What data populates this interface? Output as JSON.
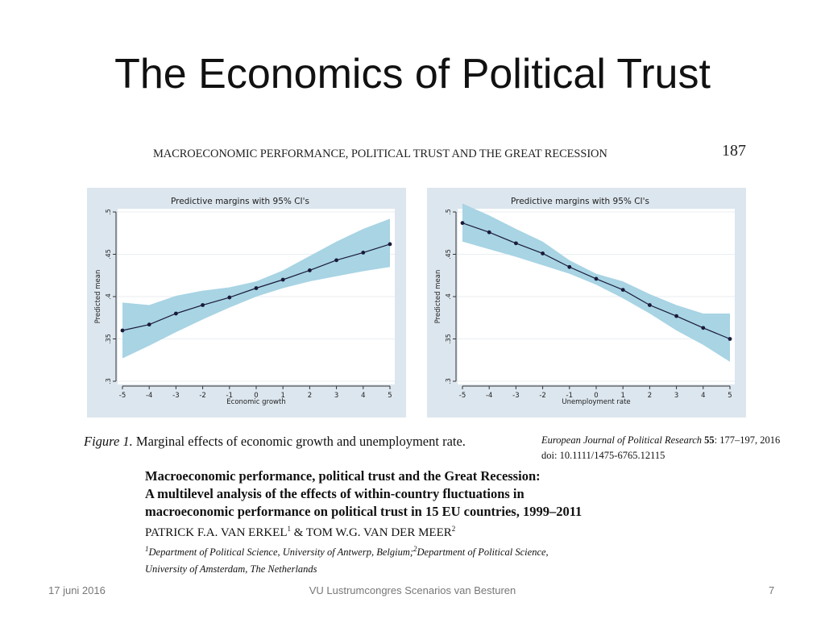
{
  "slide": {
    "title": "The Economics of Political Trust",
    "footer_date": "17 juni 2016",
    "footer_center": "VU Lustrumcongres Scenarios van Besturen",
    "footer_page": "7"
  },
  "paper": {
    "running_header": "MACROECONOMIC PERFORMANCE, POLITICAL TRUST AND THE GREAT RECESSION",
    "page_number": "187",
    "figure_label": "Figure 1.",
    "figure_caption": "Marginal effects of economic growth and unemployment rate.",
    "journal_name": "European Journal of Political Research",
    "journal_volume": "55",
    "journal_pages": ": 177–197, 2016",
    "doi": "doi: 10.1111/1475-6765.12115",
    "title_lines": [
      "Macroeconomic performance, political trust and the Great Recession:",
      "A multilevel analysis of the effects of within-country fluctuations in",
      "macroeconomic performance on political trust in 15 EU countries, 1999–2011"
    ],
    "author1": "PATRICK F.A. VAN ERKEL",
    "author1_sup": "1",
    "author_joiner": " & ",
    "author2": "TOM W.G. VAN DER MEER",
    "author2_sup": "2",
    "affil_sup1": "1",
    "affil_part1": "Department of Political Science, University of Antwerp, Belgium;",
    "affil_sup2": "2",
    "affil_part2": "Department of Political Science,",
    "affil_line2": "University of Amsterdam, The Netherlands"
  },
  "chart_data": [
    {
      "type": "line",
      "title": "Predictive margins with 95% CI's",
      "xlabel": "Economic growth",
      "ylabel": "Predicted mean",
      "x": [
        -5,
        -4,
        -3,
        -2,
        -1,
        0,
        1,
        2,
        3,
        4,
        5
      ],
      "y": [
        0.36,
        0.367,
        0.38,
        0.39,
        0.399,
        0.41,
        0.42,
        0.431,
        0.443,
        0.452,
        0.462
      ],
      "ci_lower": [
        0.327,
        0.342,
        0.358,
        0.373,
        0.387,
        0.4,
        0.41,
        0.418,
        0.424,
        0.43,
        0.435
      ],
      "ci_upper": [
        0.393,
        0.39,
        0.401,
        0.407,
        0.411,
        0.418,
        0.431,
        0.448,
        0.465,
        0.48,
        0.492
      ],
      "x_ticks": [
        "-5",
        "-4",
        "-3",
        "-2",
        "-1",
        "0",
        "1",
        "2",
        "3",
        "4",
        "5"
      ],
      "y_ticks": [
        0.3,
        0.35,
        0.4,
        0.45,
        0.5
      ],
      "y_tick_labels": [
        ".3",
        ".35",
        ".4",
        ".45",
        ".5"
      ],
      "xlim": [
        -5,
        5
      ],
      "ylim": [
        0.3,
        0.5
      ],
      "grid": true
    },
    {
      "type": "line",
      "title": "Predictive margins with 95% CI's",
      "xlabel": "Unemployment rate",
      "ylabel": "Predicted mean",
      "x": [
        -5,
        -4,
        -3,
        -2,
        -1,
        0,
        1,
        2,
        3,
        4,
        5
      ],
      "y": [
        0.487,
        0.476,
        0.463,
        0.451,
        0.435,
        0.421,
        0.408,
        0.39,
        0.377,
        0.363,
        0.35
      ],
      "ci_lower": [
        0.465,
        0.456,
        0.447,
        0.437,
        0.427,
        0.414,
        0.398,
        0.38,
        0.36,
        0.343,
        0.323
      ],
      "ci_upper": [
        0.51,
        0.496,
        0.48,
        0.465,
        0.443,
        0.427,
        0.418,
        0.403,
        0.39,
        0.38,
        0.38
      ],
      "x_ticks": [
        "-5",
        "-4",
        "-3",
        "-2",
        "-1",
        "0",
        "1",
        "2",
        "3",
        "4",
        "5"
      ],
      "y_ticks": [
        0.3,
        0.35,
        0.4,
        0.45,
        0.5
      ],
      "y_tick_labels": [
        ".3",
        ".35",
        ".4",
        ".45",
        ".5"
      ],
      "xlim": [
        -5,
        5
      ],
      "ylim": [
        0.3,
        0.5
      ],
      "grid": true
    }
  ],
  "colors": {
    "ci_band": "#a8d4e4",
    "line": "#1a1a3a",
    "gridline": "#ffffff",
    "panel_background": "#dce6ee"
  }
}
